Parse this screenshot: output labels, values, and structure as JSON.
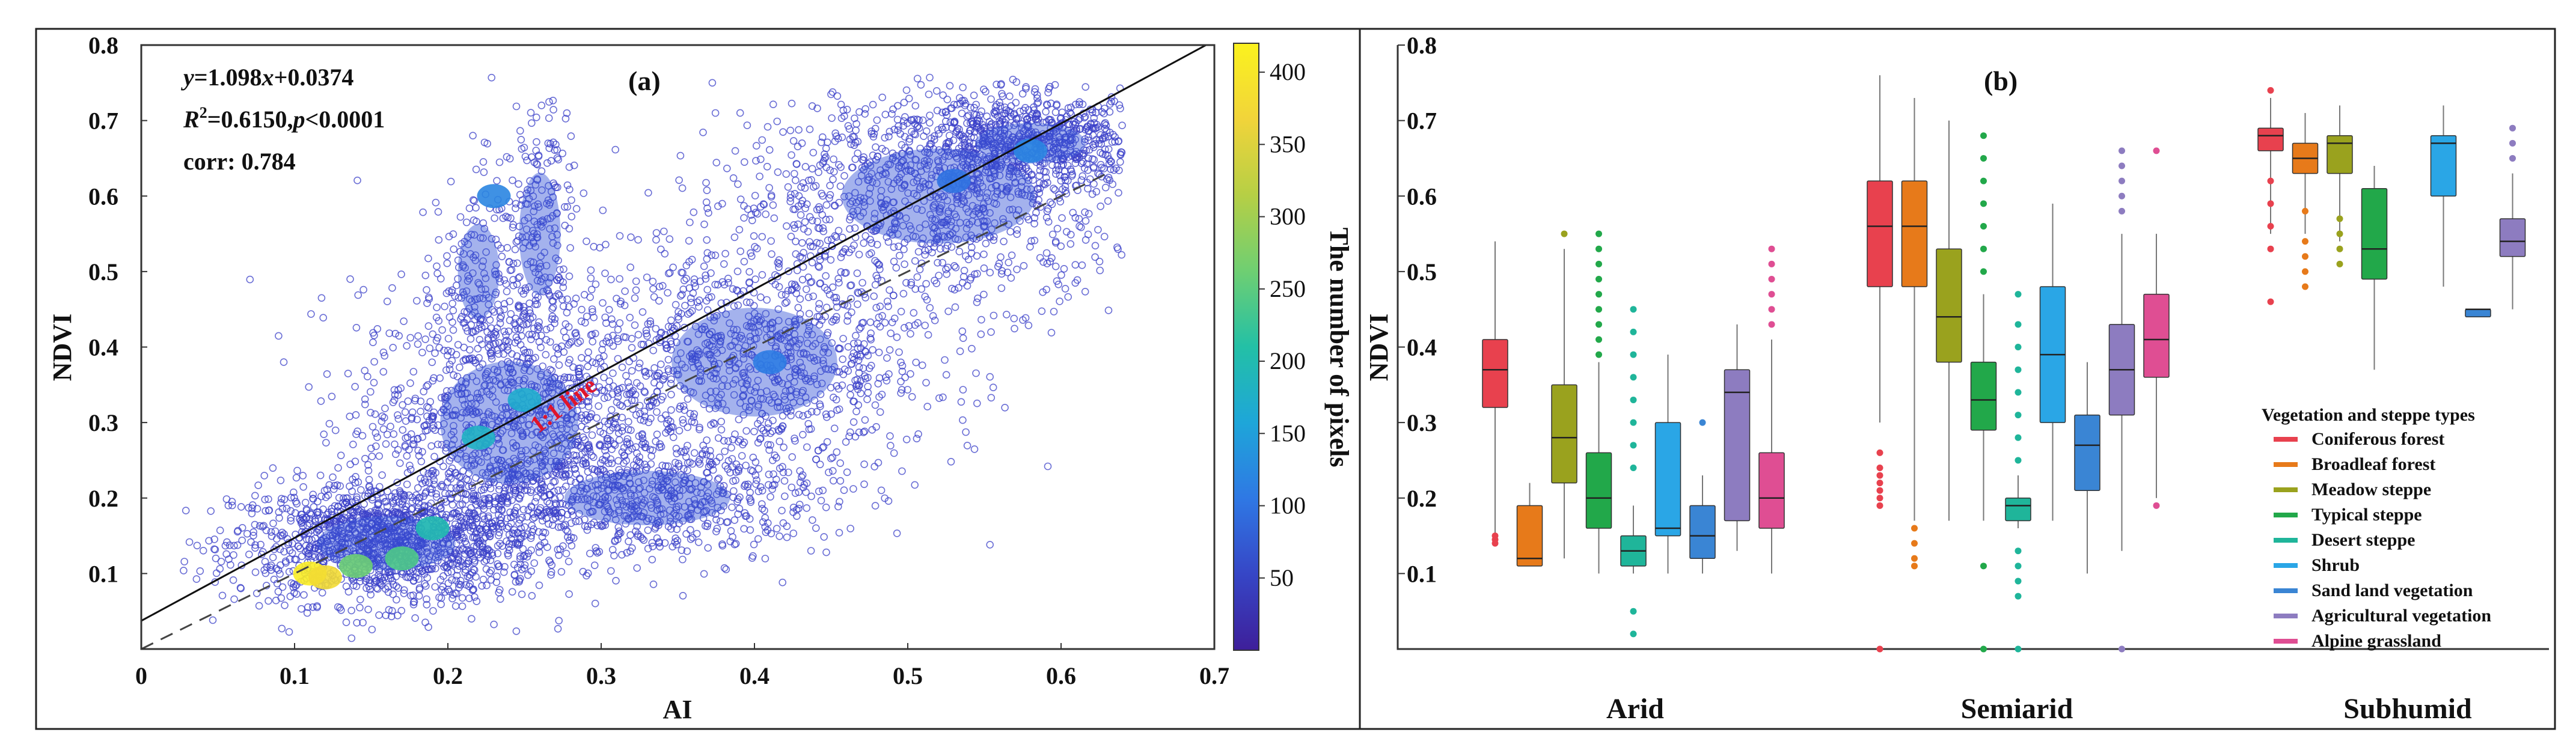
{
  "chart_data": [
    {
      "type": "scatter",
      "panel_label": "(a)",
      "xlabel": "AI",
      "ylabel": "NDVI",
      "xlim": [
        0,
        0.7
      ],
      "ylim": [
        0,
        0.8
      ],
      "x_ticks": [
        "0",
        "0.1",
        "0.2",
        "0.3",
        "0.4",
        "0.5",
        "0.6",
        "0.7"
      ],
      "y_ticks": [
        "0.1",
        "0.2",
        "0.3",
        "0.4",
        "0.5",
        "0.6",
        "0.7",
        "0.8"
      ],
      "x_tick_values": [
        0,
        0.1,
        0.2,
        0.3,
        0.4,
        0.5,
        0.6,
        0.7
      ],
      "y_tick_values": [
        0.1,
        0.2,
        0.3,
        0.4,
        0.5,
        0.6,
        0.7,
        0.8
      ],
      "annotations": {
        "equation_y": "y",
        "equation_eq": "=1.098",
        "equation_x": "x",
        "equation_rest": "+0.0374",
        "r2_r": "R",
        "r2_sup": "2",
        "r2_mid": "=0.6150,",
        "r2_p": "p",
        "r2_end": "<0.0001",
        "corr": "corr: 0.784",
        "one_to_one": "1:1 line"
      },
      "regression": {
        "slope": 1.098,
        "intercept": 0.0374
      },
      "colorbar": {
        "label": "The number of pixels",
        "range": [
          0,
          420
        ],
        "ticks": [
          "50",
          "100",
          "150",
          "200",
          "250",
          "300",
          "350",
          "400"
        ],
        "tick_values": [
          50,
          100,
          150,
          200,
          250,
          300,
          350,
          400
        ],
        "colors": [
          "#3e1f9a",
          "#3646c6",
          "#2f78e4",
          "#1ea6d9",
          "#23c0a6",
          "#6fcf72",
          "#b6cf45",
          "#f1d43a",
          "#fbf21e"
        ]
      },
      "clusters": [
        {
          "cx": 0.16,
          "cy": 0.14,
          "sx": 0.05,
          "sy": 0.04,
          "n": 1400
        },
        {
          "cx": 0.24,
          "cy": 0.3,
          "sx": 0.05,
          "sy": 0.09,
          "n": 1200
        },
        {
          "cx": 0.4,
          "cy": 0.38,
          "sx": 0.06,
          "sy": 0.08,
          "n": 1000
        },
        {
          "cx": 0.52,
          "cy": 0.6,
          "sx": 0.07,
          "sy": 0.07,
          "n": 1000
        },
        {
          "cx": 0.58,
          "cy": 0.67,
          "sx": 0.04,
          "sy": 0.03,
          "n": 700
        },
        {
          "cx": 0.33,
          "cy": 0.2,
          "sx": 0.06,
          "sy": 0.04,
          "n": 600
        },
        {
          "cx": 0.26,
          "cy": 0.55,
          "sx": 0.015,
          "sy": 0.09,
          "n": 220
        },
        {
          "cx": 0.22,
          "cy": 0.5,
          "sx": 0.015,
          "sy": 0.07,
          "n": 160
        }
      ],
      "hotspots": [
        {
          "x": 0.11,
          "y": 0.1,
          "value": 410
        },
        {
          "x": 0.12,
          "y": 0.095,
          "value": 380
        },
        {
          "x": 0.14,
          "y": 0.11,
          "value": 260
        },
        {
          "x": 0.17,
          "y": 0.12,
          "value": 240
        },
        {
          "x": 0.19,
          "y": 0.16,
          "value": 200
        },
        {
          "x": 0.22,
          "y": 0.28,
          "value": 180
        },
        {
          "x": 0.25,
          "y": 0.33,
          "value": 170
        },
        {
          "x": 0.23,
          "y": 0.6,
          "value": 120
        },
        {
          "x": 0.41,
          "y": 0.38,
          "value": 110
        },
        {
          "x": 0.58,
          "y": 0.66,
          "value": 120
        },
        {
          "x": 0.53,
          "y": 0.62,
          "value": 100
        }
      ]
    },
    {
      "type": "box",
      "panel_label": "(b)",
      "ylabel": "NDVI",
      "ylim": [
        0,
        0.8
      ],
      "y_ticks": [
        "0.1",
        "0.2",
        "0.3",
        "0.4",
        "0.5",
        "0.6",
        "0.7",
        "0.8"
      ],
      "y_tick_values": [
        0.1,
        0.2,
        0.3,
        0.4,
        0.5,
        0.6,
        0.7,
        0.8
      ],
      "groups": [
        "Arid",
        "Semiarid",
        "Subhumid"
      ],
      "legend": {
        "title": "Vegetation and steppe types",
        "position": "bottom-right",
        "items": [
          {
            "label": "Coniferous forest",
            "color": "#e8414e"
          },
          {
            "label": "Broadleaf forest",
            "color": "#e77a1a"
          },
          {
            "label": "Meadow steppe",
            "color": "#9aa21e"
          },
          {
            "label": "Typical steppe",
            "color": "#22a84a"
          },
          {
            "label": "Desert steppe",
            "color": "#1fb59a"
          },
          {
            "label": "Shrub",
            "color": "#2aa6e6"
          },
          {
            "label": "Sand land vegetation",
            "color": "#3a85d4"
          },
          {
            "label": "Agricultural vegetation",
            "color": "#8d7cc0"
          },
          {
            "label": "Alpine grassland",
            "color": "#df4e93"
          }
        ]
      },
      "boxes": [
        {
          "group": 0,
          "type": 0,
          "min": 0.15,
          "q1": 0.32,
          "median": 0.37,
          "q3": 0.41,
          "max": 0.54,
          "outliers": [
            0.14,
            0.145,
            0.15
          ]
        },
        {
          "group": 0,
          "type": 1,
          "min": 0.11,
          "q1": 0.11,
          "median": 0.12,
          "q3": 0.19,
          "max": 0.22,
          "outliers": []
        },
        {
          "group": 0,
          "type": 2,
          "min": 0.12,
          "q1": 0.22,
          "median": 0.28,
          "q3": 0.35,
          "max": 0.53,
          "outliers": [
            0.55
          ]
        },
        {
          "group": 0,
          "type": 3,
          "min": 0.1,
          "q1": 0.16,
          "median": 0.2,
          "q3": 0.26,
          "max": 0.38,
          "outliers": [
            0.39,
            0.41,
            0.43,
            0.45,
            0.47,
            0.49,
            0.51,
            0.53,
            0.55
          ]
        },
        {
          "group": 0,
          "type": 4,
          "min": 0.1,
          "q1": 0.11,
          "median": 0.13,
          "q3": 0.15,
          "max": 0.19,
          "outliers": [
            0.02,
            0.05,
            0.24,
            0.27,
            0.3,
            0.33,
            0.36,
            0.39,
            0.42,
            0.45
          ]
        },
        {
          "group": 0,
          "type": 5,
          "min": 0.1,
          "q1": 0.15,
          "median": 0.16,
          "q3": 0.3,
          "max": 0.39,
          "outliers": []
        },
        {
          "group": 0,
          "type": 6,
          "min": 0.1,
          "q1": 0.12,
          "median": 0.15,
          "q3": 0.19,
          "max": 0.23,
          "outliers": [
            0.3
          ]
        },
        {
          "group": 0,
          "type": 7,
          "min": 0.13,
          "q1": 0.17,
          "median": 0.34,
          "q3": 0.37,
          "max": 0.43,
          "outliers": []
        },
        {
          "group": 0,
          "type": 8,
          "min": 0.1,
          "q1": 0.16,
          "median": 0.2,
          "q3": 0.26,
          "max": 0.41,
          "outliers": [
            0.43,
            0.45,
            0.47,
            0.49,
            0.51,
            0.53
          ]
        },
        {
          "group": 1,
          "type": 0,
          "min": 0.3,
          "q1": 0.48,
          "median": 0.56,
          "q3": 0.62,
          "max": 0.76,
          "outliers": [
            0.0,
            0.19,
            0.2,
            0.21,
            0.22,
            0.23,
            0.24,
            0.26
          ]
        },
        {
          "group": 1,
          "type": 1,
          "min": 0.17,
          "q1": 0.48,
          "median": 0.56,
          "q3": 0.62,
          "max": 0.73,
          "outliers": [
            0.11,
            0.12,
            0.14,
            0.16
          ]
        },
        {
          "group": 1,
          "type": 2,
          "min": 0.17,
          "q1": 0.38,
          "median": 0.44,
          "q3": 0.53,
          "max": 0.7,
          "outliers": []
        },
        {
          "group": 1,
          "type": 3,
          "min": 0.17,
          "q1": 0.29,
          "median": 0.33,
          "q3": 0.38,
          "max": 0.47,
          "outliers": [
            0.0,
            0.11,
            0.5,
            0.53,
            0.56,
            0.59,
            0.62,
            0.65,
            0.68
          ]
        },
        {
          "group": 1,
          "type": 4,
          "min": 0.16,
          "q1": 0.17,
          "median": 0.19,
          "q3": 0.2,
          "max": 0.23,
          "outliers": [
            0.0,
            0.07,
            0.09,
            0.11,
            0.13,
            0.25,
            0.28,
            0.31,
            0.34,
            0.37,
            0.4,
            0.43,
            0.47
          ]
        },
        {
          "group": 1,
          "type": 5,
          "min": 0.17,
          "q1": 0.3,
          "median": 0.39,
          "q3": 0.48,
          "max": 0.59,
          "outliers": []
        },
        {
          "group": 1,
          "type": 6,
          "min": 0.1,
          "q1": 0.21,
          "median": 0.27,
          "q3": 0.31,
          "max": 0.38,
          "outliers": []
        },
        {
          "group": 1,
          "type": 7,
          "min": 0.13,
          "q1": 0.31,
          "median": 0.37,
          "q3": 0.43,
          "max": 0.55,
          "outliers": [
            0.0,
            0.58,
            0.6,
            0.62,
            0.64,
            0.66
          ]
        },
        {
          "group": 1,
          "type": 8,
          "min": 0.2,
          "q1": 0.36,
          "median": 0.41,
          "q3": 0.47,
          "max": 0.55,
          "outliers": [
            0.19,
            0.66
          ]
        },
        {
          "group": 2,
          "type": 0,
          "min": 0.55,
          "q1": 0.66,
          "median": 0.68,
          "q3": 0.69,
          "max": 0.73,
          "outliers": [
            0.46,
            0.53,
            0.56,
            0.59,
            0.62,
            0.74
          ]
        },
        {
          "group": 2,
          "type": 1,
          "min": 0.55,
          "q1": 0.63,
          "median": 0.65,
          "q3": 0.67,
          "max": 0.71,
          "outliers": [
            0.48,
            0.5,
            0.52,
            0.54,
            0.58
          ]
        },
        {
          "group": 2,
          "type": 2,
          "min": 0.54,
          "q1": 0.63,
          "median": 0.67,
          "q3": 0.68,
          "max": 0.72,
          "outliers": [
            0.51,
            0.53,
            0.55,
            0.57
          ]
        },
        {
          "group": 2,
          "type": 3,
          "min": 0.37,
          "q1": 0.49,
          "median": 0.53,
          "q3": 0.61,
          "max": 0.64,
          "outliers": []
        },
        {
          "group": 2,
          "type": 5,
          "min": 0.48,
          "q1": 0.6,
          "median": 0.67,
          "q3": 0.68,
          "max": 0.72,
          "outliers": []
        },
        {
          "group": 2,
          "type": 6,
          "min": 0.44,
          "q1": 0.44,
          "median": 0.45,
          "q3": 0.45,
          "max": 0.45,
          "outliers": []
        },
        {
          "group": 2,
          "type": 7,
          "min": 0.45,
          "q1": 0.52,
          "median": 0.54,
          "q3": 0.57,
          "max": 0.63,
          "outliers": [
            0.65,
            0.67,
            0.69
          ]
        }
      ]
    }
  ]
}
